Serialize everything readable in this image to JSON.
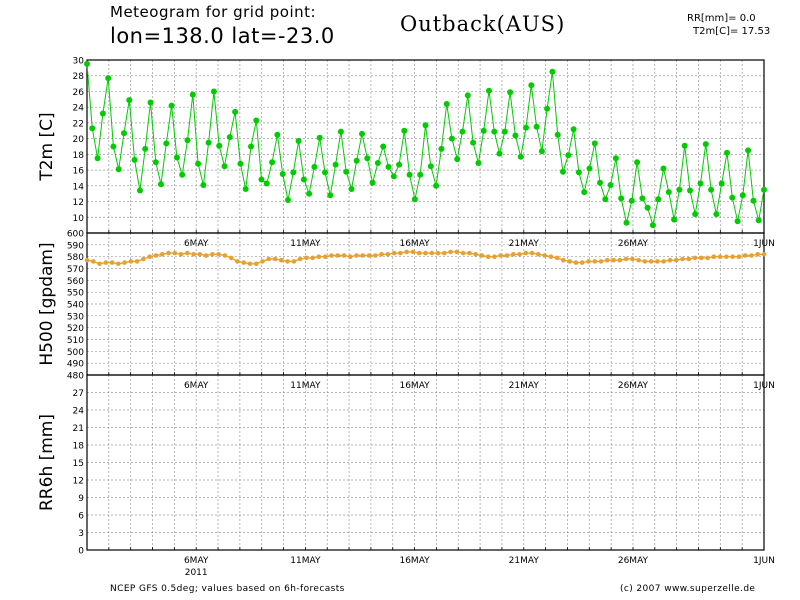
{
  "header": {
    "title_line1": "Meteogram for grid point:",
    "title_line2": "lon=138.0 lat=-23.0",
    "location": "Outback(AUS)",
    "stat_rr": "RR[mm]= 0.0",
    "stat_t2m": "T2m[C]= 17.53"
  },
  "footer": {
    "left": "NCEP GFS 0.5deg; values based on 6h-forecasts",
    "right": "(c) 2007 www.superzelle.de"
  },
  "colors": {
    "t2m": "#00cc00",
    "h500": "#e8a030",
    "grid": "#999999"
  },
  "chart_data": [
    {
      "type": "line",
      "name": "t2m-panel",
      "ylabel": "T2m [C]",
      "ylim": [
        8,
        30
      ],
      "yticks": [
        10,
        12,
        14,
        16,
        18,
        20,
        22,
        24,
        26,
        28,
        30
      ],
      "x_ticks": [
        "6MAY",
        "11MAY",
        "16MAY",
        "21MAY",
        "26MAY",
        "1JUN"
      ],
      "x_tick_days": [
        5,
        10,
        15,
        20,
        25,
        31
      ],
      "year_label": "2011",
      "grid": true,
      "series": [
        {
          "values": [
            29.5,
            21.3,
            17.5,
            23.2,
            27.7,
            19.0,
            16.1,
            20.7,
            24.9,
            17.3,
            13.4,
            18.7,
            24.6,
            17.0,
            14.2,
            19.4,
            24.2,
            17.6,
            15.4,
            19.8,
            25.6,
            16.8,
            14.1,
            19.5,
            26.0,
            19.1,
            16.5,
            20.2,
            23.4,
            16.8,
            13.6,
            19.0,
            22.3,
            14.8,
            14.3,
            17.0,
            20.5,
            15.5,
            12.2,
            15.7,
            19.7,
            14.8,
            13.0,
            16.4,
            20.1,
            15.7,
            12.8,
            16.7,
            20.9,
            15.8,
            13.6,
            17.2,
            20.6,
            17.5,
            14.4,
            16.9,
            19.0,
            16.4,
            15.2,
            16.7,
            21.0,
            15.4,
            12.3,
            15.4,
            21.7,
            16.5,
            14.0,
            18.7,
            24.4,
            20.0,
            17.4,
            20.9,
            25.5,
            19.5,
            16.9,
            21.0,
            26.1,
            20.9,
            18.1,
            20.9,
            25.9,
            20.4,
            17.7,
            21.4,
            26.8,
            21.5,
            18.4,
            23.8,
            28.5,
            20.5,
            15.8,
            17.9,
            21.2,
            15.7,
            13.2,
            16.2,
            19.4,
            14.4,
            12.3,
            14.1,
            17.5,
            12.4,
            9.3,
            12.1,
            17.0,
            12.4,
            11.2,
            9.0,
            12.3,
            16.2,
            13.2,
            9.7,
            13.5,
            19.1,
            13.4,
            10.4,
            14.3,
            19.3,
            13.5,
            10.4,
            14.3,
            18.2,
            12.5,
            9.5,
            12.8,
            18.5,
            12.1,
            9.6,
            13.5
          ]
        }
      ]
    },
    {
      "type": "line",
      "name": "h500-panel",
      "ylabel": "H500 [gpdam]",
      "ylim": [
        480,
        600
      ],
      "yticks": [
        480,
        490,
        500,
        510,
        520,
        530,
        540,
        550,
        560,
        570,
        580,
        590,
        600
      ],
      "x_ticks": [
        "6MAY",
        "11MAY",
        "16MAY",
        "21MAY",
        "26MAY",
        "1JUN"
      ],
      "x_tick_days": [
        5,
        10,
        15,
        20,
        25,
        31
      ],
      "year_label": "2011",
      "grid": true,
      "series": [
        {
          "values": [
            577,
            576,
            574,
            575,
            575,
            574,
            575,
            576,
            576,
            578,
            580,
            581,
            582,
            583,
            583,
            582,
            583,
            582,
            582,
            581,
            582,
            582,
            581,
            579,
            576,
            575,
            574,
            574,
            576,
            578,
            578,
            577,
            576,
            576,
            578,
            579,
            579,
            580,
            580,
            581,
            581,
            581,
            580,
            581,
            581,
            581,
            581,
            582,
            582,
            583,
            583,
            584,
            584,
            583,
            583,
            583,
            583,
            583,
            584,
            584,
            583,
            583,
            582,
            581,
            580,
            580,
            581,
            581,
            582,
            582,
            583,
            583,
            582,
            581,
            580,
            579,
            577,
            576,
            575,
            575,
            576,
            576,
            576,
            577,
            577,
            577,
            578,
            578,
            577,
            576,
            576,
            576,
            576,
            577,
            577,
            578,
            578,
            579,
            579,
            579,
            580,
            580,
            580,
            580,
            580,
            581,
            581,
            582,
            582
          ]
        }
      ]
    },
    {
      "type": "bar",
      "name": "rr6h-panel",
      "ylabel": "RR6h [mm]",
      "ylim": [
        0,
        30
      ],
      "yticks": [
        0,
        3,
        6,
        9,
        12,
        15,
        18,
        21,
        24,
        27
      ],
      "x_ticks": [
        "6MAY",
        "11MAY",
        "16MAY",
        "21MAY",
        "26MAY",
        "1JUN"
      ],
      "x_tick_days": [
        5,
        10,
        15,
        20,
        25,
        31
      ],
      "year_label": "2011",
      "grid": true,
      "values": []
    }
  ]
}
